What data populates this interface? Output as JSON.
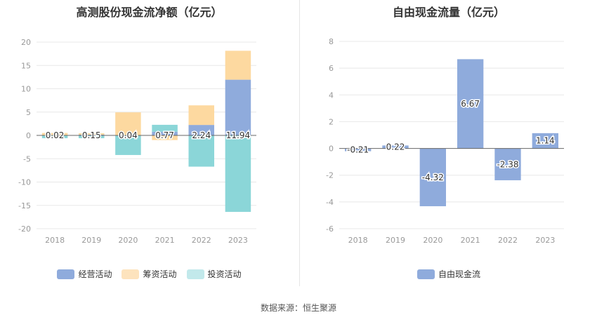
{
  "chart_data": [
    {
      "type": "bar",
      "stacked": true,
      "title": "高测股份现金流净额（亿元）",
      "categories": [
        "2018",
        "2019",
        "2020",
        "2021",
        "2022",
        "2023"
      ],
      "series": [
        {
          "name": "经营活动",
          "color": "#8fabdc",
          "values": [
            0.02,
            0.15,
            0.04,
            0.77,
            2.24,
            11.94
          ]
        },
        {
          "name": "筹资活动",
          "color": "#fdd9a0",
          "values": [
            0.5,
            0.3,
            4.9,
            -1.0,
            4.2,
            6.2
          ]
        },
        {
          "name": "投资活动",
          "color": "#8bd6d8",
          "values": [
            -0.6,
            -0.6,
            -4.2,
            1.5,
            -6.7,
            -16.4
          ]
        }
      ],
      "data_labels": [
        "0.02",
        "0.15",
        "0.04",
        "0.77",
        "2.24",
        "11.94"
      ],
      "yticks": [
        20,
        15,
        10,
        5,
        0,
        -5,
        -10,
        -15,
        -20
      ],
      "ylim": [
        -20,
        20
      ],
      "legend_colors": [
        "#8fabdc",
        "#fde3bd",
        "#c2e9eb"
      ],
      "legend_position": "bottom"
    },
    {
      "type": "bar",
      "title": "自由现金流量（亿元）",
      "categories": [
        "2018",
        "2019",
        "2020",
        "2021",
        "2022",
        "2023"
      ],
      "series": [
        {
          "name": "自由现金流",
          "color": "#8fabdc",
          "values": [
            -0.21,
            0.22,
            -4.32,
            6.67,
            -2.38,
            1.14
          ]
        }
      ],
      "data_labels": [
        "-0.21",
        "0.22",
        "-4.32",
        "6.67",
        "-2.38",
        "1.14"
      ],
      "yticks": [
        8,
        6,
        4,
        2,
        0,
        -2,
        -4,
        -6
      ],
      "ylim": [
        -6,
        8
      ],
      "legend_colors": [
        "#8fabdc"
      ],
      "legend_position": "bottom"
    }
  ],
  "source": "数据来源：恒生聚源"
}
